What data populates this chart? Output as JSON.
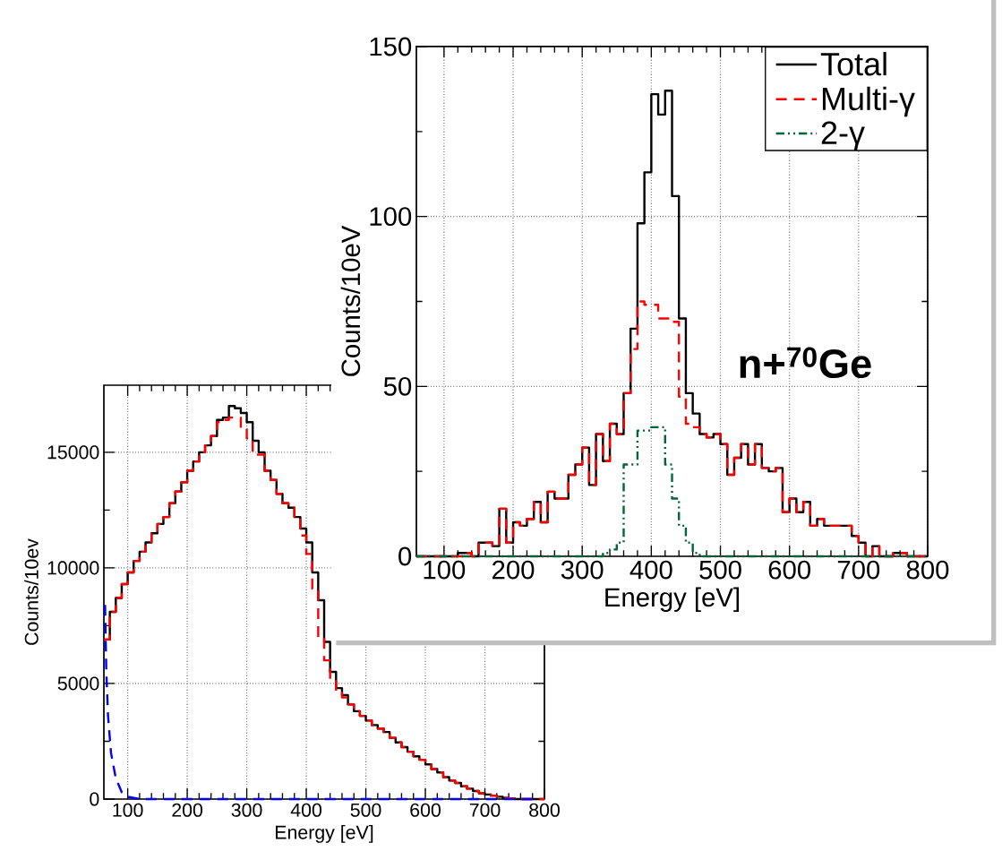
{
  "chart_data": [
    {
      "type": "histogram",
      "xlabel": "Energy [eV]",
      "ylabel": "Counts/10eV",
      "bins": [
        60,
        70,
        80,
        90,
        100,
        110,
        120,
        130,
        140,
        150,
        160,
        170,
        180,
        190,
        200,
        210,
        220,
        230,
        240,
        250,
        260,
        270,
        280,
        290,
        300,
        310,
        320,
        330,
        340,
        350,
        360,
        370,
        380,
        390,
        400,
        410,
        420,
        430,
        440,
        450,
        460,
        470,
        480,
        490,
        500,
        510,
        520,
        530,
        540,
        550,
        560,
        570,
        580,
        590,
        600,
        610,
        620,
        630,
        640,
        650,
        660,
        670,
        680,
        690,
        700,
        710,
        720,
        730,
        740,
        750,
        760,
        770,
        780,
        790,
        800
      ],
      "xlim": [
        60,
        800
      ],
      "ylim": [
        0,
        150
      ],
      "xticks": [
        100,
        200,
        300,
        400,
        500,
        600,
        700,
        800
      ],
      "yticks": [
        0,
        50,
        100,
        150
      ],
      "grid": true,
      "legend": "top right",
      "annotations": [
        "**n+$^{70}$Ge**"
      ],
      "series": [
        {
          "name": "Total",
          "color": "#000000",
          "line_style": "solid",
          "values": [
            0,
            0,
            0,
            0,
            0,
            0,
            1,
            1,
            0,
            4,
            4,
            3,
            14,
            4,
            10,
            9,
            11,
            16,
            10,
            19,
            17,
            17,
            24,
            27,
            32,
            21,
            36,
            28,
            39,
            36,
            48,
            67,
            98,
            113,
            136,
            130,
            137,
            106,
            70,
            48,
            42,
            36,
            35,
            36,
            33,
            24,
            29,
            33,
            27,
            33,
            26,
            25,
            26,
            13,
            17,
            13,
            16,
            9,
            11,
            9,
            9,
            9,
            9,
            6,
            4,
            0,
            3,
            0,
            0,
            1,
            1,
            0,
            0,
            0
          ]
        },
        {
          "name": "Multi-γ",
          "color": "#ff0000",
          "line_style": "dashed",
          "values": [
            0,
            0,
            0,
            0,
            0,
            0,
            0,
            1,
            0,
            4,
            4,
            3,
            14,
            4,
            10,
            9,
            11,
            16,
            10,
            19,
            17,
            17,
            24,
            27,
            32,
            21,
            36,
            28,
            39,
            36,
            48,
            61,
            75,
            74,
            74,
            70,
            70,
            69,
            47,
            39,
            38,
            36,
            35,
            36,
            33,
            24,
            29,
            33,
            27,
            33,
            26,
            25,
            26,
            13,
            17,
            13,
            16,
            9,
            11,
            9,
            9,
            9,
            9,
            6,
            4,
            0,
            3,
            0,
            0,
            1,
            1,
            0,
            0,
            0
          ]
        },
        {
          "name": "2-γ",
          "color": "#006633",
          "line_style": "dashdot",
          "values": [
            0,
            0,
            0,
            0,
            0,
            0,
            0,
            0,
            0,
            0,
            0,
            0,
            0,
            0,
            0,
            0,
            0,
            0,
            0,
            0,
            0,
            0,
            0,
            0,
            0,
            0,
            0,
            1,
            2,
            4,
            27,
            27,
            37,
            37,
            38,
            38,
            27,
            17,
            9,
            4,
            1,
            0,
            0,
            0,
            0,
            0,
            0,
            0,
            0,
            0,
            0,
            0,
            0,
            0,
            0,
            0,
            0,
            0,
            0,
            0,
            0,
            0,
            0,
            0,
            0,
            0,
            0,
            0,
            0,
            0,
            0,
            0,
            0,
            0
          ]
        }
      ]
    },
    {
      "type": "histogram",
      "xlabel": "Energy [eV]",
      "ylabel": "Counts/10ev",
      "bins": [
        60,
        70,
        80,
        90,
        100,
        110,
        120,
        130,
        140,
        150,
        160,
        170,
        180,
        190,
        200,
        210,
        220,
        230,
        240,
        250,
        260,
        270,
        280,
        290,
        300,
        310,
        320,
        330,
        340,
        350,
        360,
        370,
        380,
        390,
        400,
        410,
        420,
        430,
        440,
        450,
        460,
        470,
        480,
        490,
        500,
        510,
        520,
        530,
        540,
        550,
        560,
        570,
        580,
        590,
        600,
        610,
        620,
        630,
        640,
        650,
        660,
        670,
        680,
        690,
        700,
        710,
        720,
        730,
        740,
        750,
        760,
        770,
        780,
        790,
        800
      ],
      "xlim": [
        60,
        800
      ],
      "ylim": [
        0,
        17900
      ],
      "xticks": [
        100,
        200,
        300,
        400,
        500,
        600,
        700,
        800
      ],
      "yticks": [
        0,
        5000,
        10000,
        15000
      ],
      "grid": true,
      "series": [
        {
          "color": "#000000",
          "line_style": "solid",
          "values": [
            6900,
            8100,
            8700,
            9300,
            9800,
            10300,
            10700,
            11100,
            11500,
            11900,
            12200,
            12800,
            13300,
            13700,
            14200,
            14600,
            15000,
            15300,
            15700,
            16400,
            16500,
            17000,
            16900,
            16700,
            16300,
            15500,
            15000,
            14200,
            13800,
            13200,
            12800,
            12600,
            12200,
            11700,
            11100,
            9800,
            8600,
            6800,
            5500,
            4800,
            4500,
            4100,
            3800,
            3600,
            3400,
            3200,
            3050,
            2900,
            2650,
            2450,
            2250,
            2050,
            1850,
            1700,
            1500,
            1300,
            1150,
            950,
            800,
            700,
            550,
            450,
            350,
            250,
            200,
            150,
            100,
            50,
            30,
            0,
            0,
            0,
            0,
            0
          ]
        },
        {
          "color": "#ff0000",
          "line_style": "dashed",
          "values": [
            6900,
            8100,
            8700,
            9300,
            9800,
            10300,
            10700,
            11100,
            11500,
            11900,
            12200,
            12800,
            13300,
            13700,
            14200,
            14600,
            15000,
            15300,
            15700,
            16300,
            16400,
            16500,
            16500,
            16000,
            15600,
            14900,
            14900,
            14200,
            13800,
            13200,
            12800,
            12600,
            12200,
            11400,
            10600,
            9100,
            7000,
            6000,
            5100,
            4600,
            4400,
            4100,
            3800,
            3600,
            3400,
            3200,
            3050,
            2900,
            2650,
            2450,
            2250,
            2050,
            1850,
            1700,
            1500,
            1300,
            1150,
            950,
            800,
            700,
            550,
            450,
            350,
            250,
            200,
            150,
            100,
            50,
            30,
            0,
            0,
            0,
            0,
            0
          ]
        },
        {
          "type": "line",
          "color": "#0000ff",
          "line_style": "dashed",
          "x": [
            62,
            64,
            67,
            72,
            80,
            90,
            100,
            120,
            200,
            300,
            400,
            500,
            600,
            700,
            780
          ],
          "values": [
            8400,
            5600,
            3600,
            2000,
            900,
            300,
            100,
            0,
            0,
            0,
            0,
            0,
            0,
            0,
            0
          ]
        }
      ]
    }
  ]
}
